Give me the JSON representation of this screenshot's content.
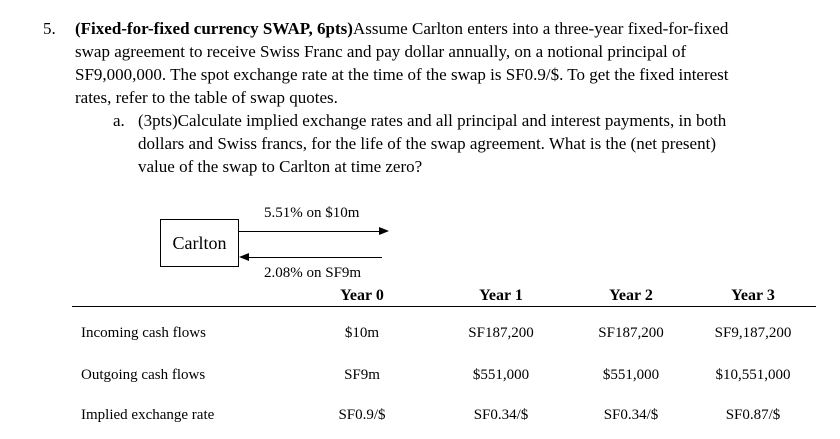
{
  "question": {
    "number": "5.",
    "title": "(Fixed-for-fixed currency SWAP, 6pts)",
    "lines": [
      "Assume Carlton enters into a three-year fixed-for-fixed",
      "swap agreement to receive Swiss Franc and pay dollar annually, on a notional principal of",
      "SF9,000,000. The spot exchange rate at the time of the swap is SF0.9/$.  To get the fixed interest",
      "rates, refer to the table of swap quotes."
    ]
  },
  "subquestion": {
    "label": "a.",
    "lines": [
      "(3pts)Calculate implied exchange rates and all principal and interest payments, in both",
      "dollars and Swiss francs, for the life of the swap agreement. What is the (net present)",
      "value of the swap to Carlton at time zero?"
    ]
  },
  "diagram": {
    "box_label": "Carlton",
    "top_arrow_label": "5.51% on $10m",
    "bottom_arrow_label": "2.08%  on SF9m"
  },
  "table": {
    "headers": [
      "Year 0",
      "Year 1",
      "Year 2",
      "Year 3"
    ],
    "rows": [
      {
        "label": "Incoming cash flows",
        "values": [
          "$10m",
          "SF187,200",
          "SF187,200",
          "SF9,187,200"
        ]
      },
      {
        "label": "Outgoing cash flows",
        "values": [
          "SF9m",
          "$551,000",
          "$551,000",
          "$10,551,000"
        ]
      },
      {
        "label": "Implied exchange rate",
        "values": [
          "SF0.9/$",
          "SF0.34/$",
          "SF0.34/$",
          "SF0.87/$"
        ]
      }
    ]
  }
}
